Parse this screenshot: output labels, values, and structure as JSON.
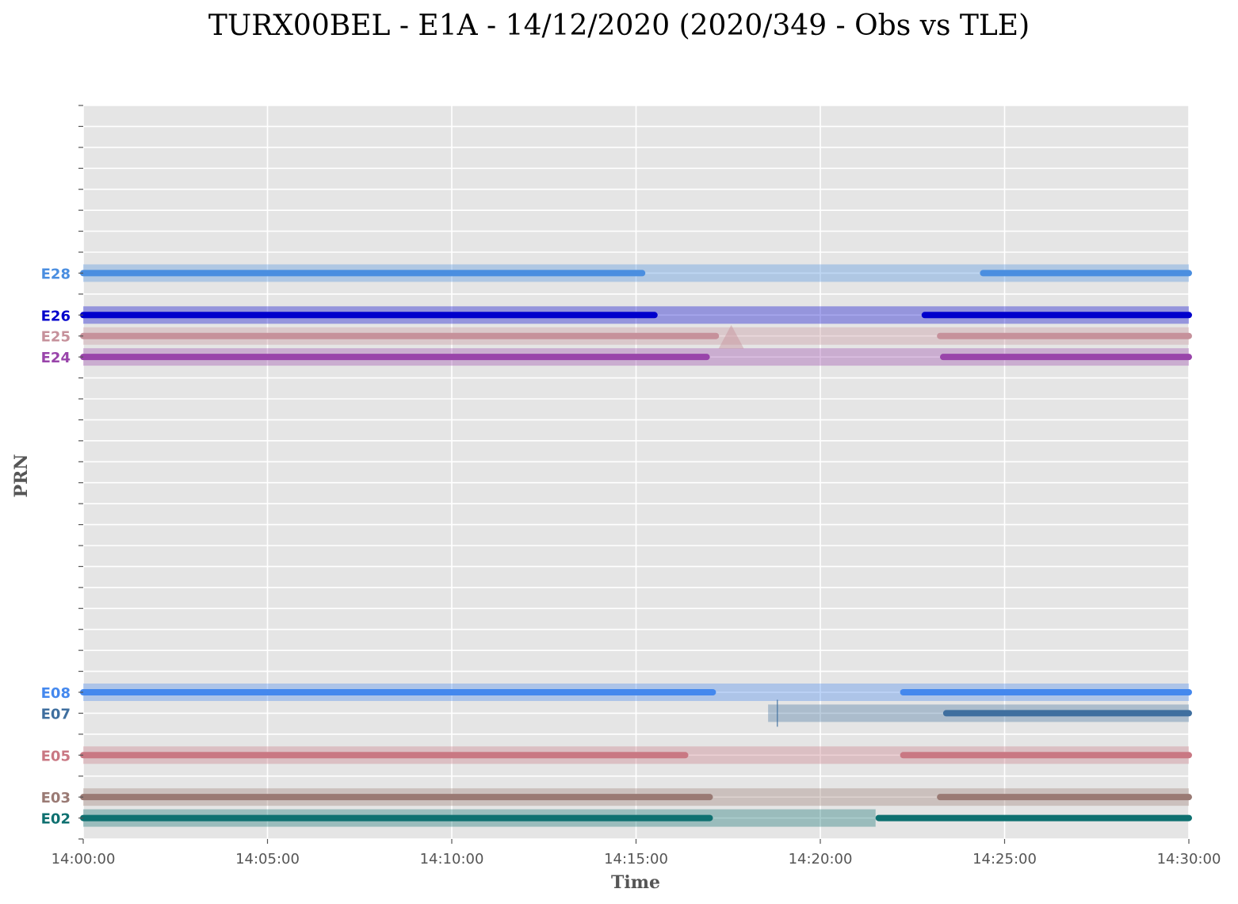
{
  "chart_data": {
    "type": "timeline",
    "title": "TURX00BEL - E1A - 14/12/2020 (2020/349 - Obs vs TLE)",
    "xlabel": "Time",
    "ylabel": "PRN",
    "xlim": [
      "14:00:00",
      "14:30:00"
    ],
    "xticks": [
      "14:00:00",
      "14:05:00",
      "14:10:00",
      "14:15:00",
      "14:20:00",
      "14:25:00",
      "14:30:00"
    ],
    "ylim": [
      1,
      36
    ],
    "grid": true,
    "series": [
      {
        "prn": "E02",
        "index": 2,
        "color": "#0e7070",
        "tle": [
          [
            "14:00:00",
            "14:21:30"
          ]
        ],
        "obs": [
          [
            "14:00:00",
            "14:17:00"
          ],
          [
            "14:21:35",
            "14:30:00"
          ]
        ]
      },
      {
        "prn": "E03",
        "index": 3,
        "color": "#9a7a74",
        "tle": [
          [
            "14:00:00",
            "14:30:00"
          ]
        ],
        "obs": [
          [
            "14:00:00",
            "14:17:00"
          ],
          [
            "14:23:15",
            "14:30:00"
          ]
        ]
      },
      {
        "prn": "E05",
        "index": 5,
        "color": "#c97883",
        "tle": [
          [
            "14:00:00",
            "14:30:00"
          ]
        ],
        "obs": [
          [
            "14:00:00",
            "14:16:20"
          ],
          [
            "14:22:15",
            "14:30:00"
          ]
        ]
      },
      {
        "prn": "E07",
        "index": 7,
        "color": "#3f6f9f",
        "tle": [
          [
            "14:18:35",
            "14:30:00"
          ]
        ],
        "obs": [
          [
            "14:23:25",
            "14:30:00"
          ]
        ],
        "marker": {
          "type": "vline",
          "time": "14:18:50"
        }
      },
      {
        "prn": "E08",
        "index": 8,
        "color": "#4488ee",
        "tle": [
          [
            "14:00:00",
            "14:30:00"
          ]
        ],
        "obs": [
          [
            "14:00:00",
            "14:17:05"
          ],
          [
            "14:22:15",
            "14:30:00"
          ]
        ]
      },
      {
        "prn": "E24",
        "index": 24,
        "color": "#9944aa",
        "tle": [
          [
            "14:00:00",
            "14:30:00"
          ]
        ],
        "obs": [
          [
            "14:00:00",
            "14:16:55"
          ],
          [
            "14:23:20",
            "14:30:00"
          ]
        ]
      },
      {
        "prn": "E25",
        "index": 25,
        "color": "#c6919b",
        "tle": [
          [
            "14:00:00",
            "14:30:00"
          ]
        ],
        "obs": [
          [
            "14:00:00",
            "14:17:10"
          ],
          [
            "14:23:15",
            "14:30:00"
          ]
        ],
        "marker": {
          "type": "triangle",
          "time": "14:17:35"
        }
      },
      {
        "prn": "E26",
        "index": 26,
        "color": "#0000cc",
        "tle": [
          [
            "14:00:00",
            "14:30:00"
          ]
        ],
        "obs": [
          [
            "14:00:00",
            "14:15:30"
          ],
          [
            "14:22:50",
            "14:30:00"
          ]
        ]
      },
      {
        "prn": "E28",
        "index": 28,
        "color": "#4a8ee0",
        "tle": [
          [
            "14:00:00",
            "14:30:00"
          ]
        ],
        "obs": [
          [
            "14:00:00",
            "14:15:10"
          ],
          [
            "14:24:25",
            "14:30:00"
          ]
        ]
      }
    ]
  }
}
